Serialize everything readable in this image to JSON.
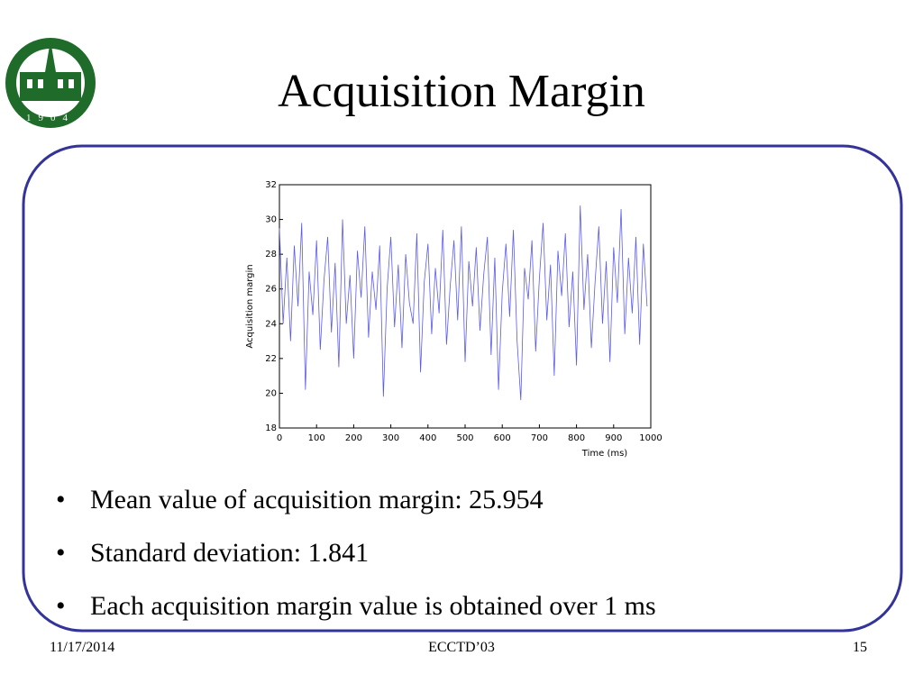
{
  "slide": {
    "title": "Acquisition Margin",
    "bullets": [
      "Mean value of acquisition margin: 25.954",
      "Standard deviation: 1.841",
      "Each acquisition margin value is obtained over 1 ms"
    ],
    "bullet_symbol": "•",
    "footer": {
      "date": "11/17/2014",
      "center": "ECCTD’03",
      "page": "15"
    },
    "logo_year": "1904"
  },
  "chart_data": {
    "type": "line",
    "xlabel": "Time (ms)",
    "ylabel": "Acquisition margin",
    "color": "#5a5af0",
    "xlim": [
      0,
      1000
    ],
    "xticks": [
      0,
      100,
      200,
      300,
      400,
      500,
      600,
      700,
      800,
      900,
      1000
    ],
    "ylim": [
      18,
      32
    ],
    "yticks": [
      18,
      20,
      22,
      24,
      26,
      28,
      30,
      32
    ],
    "x": [
      0,
      10,
      20,
      30,
      40,
      50,
      60,
      70,
      80,
      90,
      100,
      110,
      120,
      130,
      140,
      150,
      160,
      170,
      180,
      190,
      200,
      210,
      220,
      230,
      240,
      250,
      260,
      270,
      280,
      290,
      300,
      310,
      320,
      330,
      340,
      350,
      360,
      370,
      380,
      390,
      400,
      410,
      420,
      430,
      440,
      450,
      460,
      470,
      480,
      490,
      500,
      510,
      520,
      530,
      540,
      550,
      560,
      570,
      580,
      590,
      600,
      610,
      620,
      630,
      640,
      650,
      660,
      670,
      680,
      690,
      700,
      710,
      720,
      730,
      740,
      750,
      760,
      770,
      780,
      790,
      800,
      810,
      820,
      830,
      840,
      850,
      860,
      870,
      880,
      890,
      900,
      910,
      920,
      930,
      940,
      950,
      960,
      970,
      980,
      990
    ],
    "values": [
      29.5,
      24,
      27.8,
      23,
      28.5,
      25,
      29.8,
      20.2,
      27,
      24.5,
      28.8,
      22.5,
      26.5,
      29,
      23.5,
      27.5,
      21.5,
      30,
      24,
      26.8,
      22,
      28.2,
      25.5,
      29.6,
      23.2,
      27,
      24.8,
      28.5,
      19.8,
      26,
      29,
      23.8,
      27.4,
      22.6,
      28,
      25.2,
      24,
      29.2,
      21.2,
      26.4,
      28.6,
      23.4,
      27.2,
      24.6,
      29.4,
      22.8,
      26.2,
      28.8,
      24.2,
      29.6,
      21.8,
      27.6,
      25,
      28.4,
      23.6,
      26.8,
      29,
      22.2,
      27.8,
      20.2,
      25.8,
      28.6,
      24.4,
      29.4,
      23,
      19.6,
      27.2,
      25.4,
      28.8,
      22.4,
      26.6,
      29.8,
      24.2,
      27.4,
      21,
      28.2,
      25.6,
      29.2,
      23.8,
      27,
      21.6,
      30.8,
      24.8,
      28,
      22.6,
      26.4,
      29.6,
      24,
      27.6,
      21.8,
      28.4,
      25.2,
      30.6,
      23.4,
      27.8,
      24.6,
      29,
      22.8,
      28.6,
      25
    ]
  }
}
